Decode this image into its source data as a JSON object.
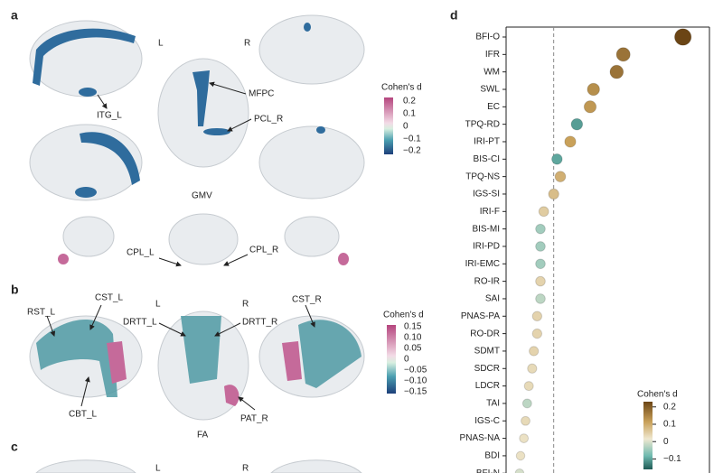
{
  "panels": {
    "a": {
      "label": "a",
      "left": "L",
      "right": "R",
      "annotations": [
        "ITG_L",
        "MFPC",
        "PCL_R",
        "GMV",
        "CPL_L",
        "CPL_R"
      ],
      "colorbar_title": "Cohen's d",
      "colorbar_labels": [
        "0.2",
        "0.1",
        "0",
        "−0.1",
        "−0.2"
      ]
    },
    "b": {
      "label": "b",
      "left": "L",
      "right": "R",
      "annotations": [
        "RST_L",
        "CST_L",
        "DRTT_L",
        "DRTT_R",
        "CST_R",
        "CBT_L",
        "PAT_R",
        "FA"
      ],
      "colorbar_title": "Cohen's d",
      "colorbar_labels": [
        "0.15",
        "0.10",
        "0.05",
        "0",
        "−0.05",
        "−0.10",
        "−0.15"
      ]
    },
    "c": {
      "label": "c",
      "left": "L",
      "right": "R"
    }
  },
  "chart_data": {
    "type": "dot",
    "panel_label": "d",
    "categories": [
      "BFI-O",
      "IFR",
      "WM",
      "SWL",
      "EC",
      "TPQ-RD",
      "IRI-PT",
      "BIS-CI",
      "TPQ-NS",
      "IGS-SI",
      "IRI-F",
      "BIS-MI",
      "IRI-PD",
      "IRI-EMC",
      "RO-IR",
      "SAI",
      "PNAS-PA",
      "RO-DR",
      "SDMT",
      "SDCR",
      "LDCR",
      "TAI",
      "IGS-C",
      "PNAS-NA",
      "BDI",
      "BFI-N"
    ],
    "values": [
      5.2,
      3.4,
      3.2,
      2.5,
      2.4,
      2.0,
      1.8,
      1.4,
      1.5,
      1.3,
      1.0,
      0.9,
      0.9,
      0.9,
      0.9,
      0.9,
      0.8,
      0.8,
      0.7,
      0.65,
      0.55,
      0.5,
      0.45,
      0.4,
      0.3,
      0.27
    ],
    "color_values": [
      0.2,
      0.15,
      0.15,
      0.12,
      0.11,
      -0.08,
      0.1,
      -0.07,
      0.08,
      0.06,
      0.04,
      -0.03,
      -0.03,
      -0.03,
      0.03,
      -0.02,
      0.03,
      0.03,
      0.03,
      0.02,
      0.02,
      -0.02,
      0.02,
      0.01,
      0.01,
      -0.01
    ],
    "xlim": [
      0,
      6
    ],
    "threshold": 1.3,
    "colorbar": {
      "title": "Cohen's d",
      "lim": [
        -0.16,
        0.23
      ],
      "ticks": [
        0.2,
        0.1,
        0,
        {
          "value": -0.1,
          "label": "−0.1"
        }
      ]
    }
  }
}
